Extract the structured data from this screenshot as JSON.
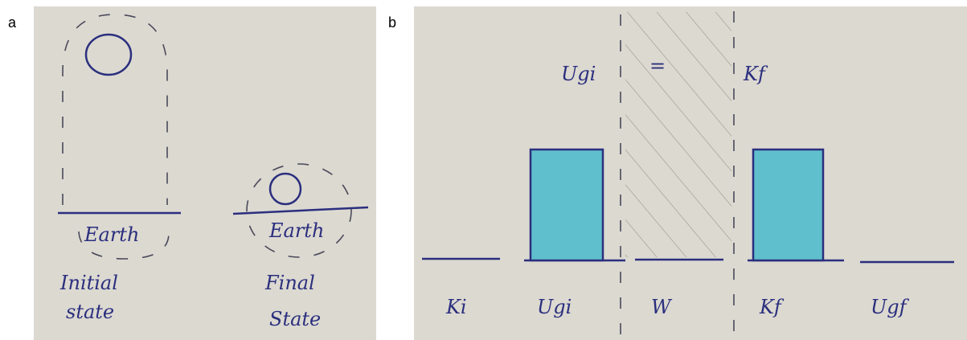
{
  "panel_a": {
    "label": "a",
    "initial": {
      "earth": "Earth",
      "caption": [
        "Initial",
        "state"
      ]
    },
    "final": {
      "earth": "Earth",
      "caption": [
        "Final",
        "State"
      ]
    }
  },
  "panel_b": {
    "label": "b",
    "equation": [
      "Ugi",
      "=",
      "Kf"
    ],
    "bars": [
      "Ki",
      "Ugi",
      "W",
      "Kf",
      "Ugf"
    ]
  }
}
